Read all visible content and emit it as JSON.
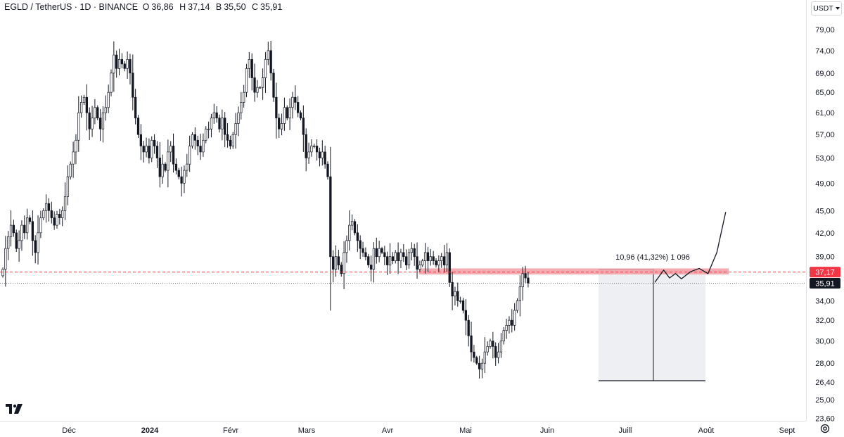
{
  "header": {
    "symbol": "EGLD / TetherUS · 1D · BINANCE",
    "open_label": "O",
    "open": "36,86",
    "high_label": "H",
    "high": "37,14",
    "low_label": "B",
    "low": "35,50",
    "close_label": "C",
    "close": "35,91"
  },
  "currency_selector": {
    "label": "USDT",
    "icon": "chevron-down-icon"
  },
  "colors": {
    "up": "#26a69a",
    "down": "#131722",
    "body_up": "#ffffff",
    "resistance_zone": "#f49ca3",
    "resistance_line": "#f23645",
    "last_price_bg": "#131722",
    "range_box": "#eeeff2"
  },
  "chart_data": {
    "type": "candlestick",
    "symbol": "EGLD / TetherUS",
    "interval": "1D",
    "exchange": "BINANCE",
    "y_ticks": [
      "79,00",
      "74,00",
      "69,00",
      "65,00",
      "61,00",
      "57,00",
      "53,00",
      "49,00",
      "45,00",
      "42,00",
      "39,00",
      "34,00",
      "32,00",
      "30,00",
      "28,00",
      "26,40",
      "25,00",
      "23,60"
    ],
    "x_ticks": [
      "Déc",
      "2024",
      "Févr",
      "Mars",
      "Avr",
      "Mai",
      "Juin",
      "Juill",
      "Août",
      "Sept"
    ],
    "log_scale": true,
    "grid": false,
    "price_labels": [
      {
        "value": "37,17",
        "kind": "resistance"
      },
      {
        "value": "35,91",
        "kind": "last-price"
      }
    ],
    "resistance_zone": {
      "low": 36.9,
      "high": 37.6
    },
    "measure_tool": {
      "label": "10,96 (41,32%) 1 096",
      "from": 26.52,
      "to": 37.48
    },
    "projection_path": [
      [
        0,
        36.0
      ],
      [
        6,
        37.4
      ],
      [
        10,
        36.5
      ],
      [
        14,
        37.0
      ],
      [
        18,
        36.4
      ],
      [
        24,
        37.2
      ],
      [
        30,
        37.6
      ],
      [
        36,
        37.0
      ],
      [
        42,
        39.5
      ],
      [
        48,
        44.8
      ]
    ],
    "close_series": [
      37.5,
      40,
      41.5,
      43,
      42,
      40,
      41,
      43,
      42,
      44,
      43.5,
      41,
      39.5,
      42,
      44,
      45,
      46,
      45,
      44,
      43,
      44.5,
      44,
      45,
      47,
      50,
      52,
      54,
      56,
      61,
      63,
      64,
      61,
      58,
      60,
      62,
      60,
      58,
      61,
      62,
      65,
      69,
      73,
      70,
      72,
      71,
      70,
      72,
      69,
      64,
      60,
      57,
      55,
      54,
      55,
      53,
      56,
      55,
      53,
      50,
      52,
      51,
      54,
      55,
      52,
      51,
      50,
      49,
      51,
      52,
      55,
      57,
      56,
      55,
      54,
      56,
      58,
      58,
      60,
      61,
      60,
      58,
      60,
      57,
      56,
      55,
      57,
      59,
      61,
      63,
      65,
      70,
      72,
      68,
      65,
      66,
      66,
      68,
      72,
      74,
      69,
      64,
      60,
      58,
      59,
      62,
      60,
      62,
      64,
      63,
      61,
      60,
      57,
      53,
      54,
      55,
      55,
      54,
      53,
      54,
      52,
      50,
      39,
      37.5,
      39,
      38,
      37,
      39.5,
      41,
      43,
      43.5,
      42,
      41,
      40,
      39.5,
      39,
      38,
      37.5,
      40,
      39,
      40,
      39.5,
      39,
      38,
      39,
      38.5,
      39.5,
      38.5,
      39.5,
      39,
      38,
      39.5,
      40,
      39,
      37.5,
      38,
      38.5,
      39.5,
      38.5,
      39,
      38.5,
      38,
      38.5,
      39,
      38,
      39.5,
      36,
      34.5,
      35,
      34,
      34,
      33,
      32,
      30.5,
      29,
      28.5,
      28,
      27.5,
      28,
      29,
      29.5,
      30,
      29.5,
      28.5,
      29,
      30,
      31,
      31.5,
      32,
      31.5,
      33,
      34,
      35.5,
      37,
      36.5,
      35.91
    ]
  },
  "settings": {
    "icon": "gear-icon"
  }
}
